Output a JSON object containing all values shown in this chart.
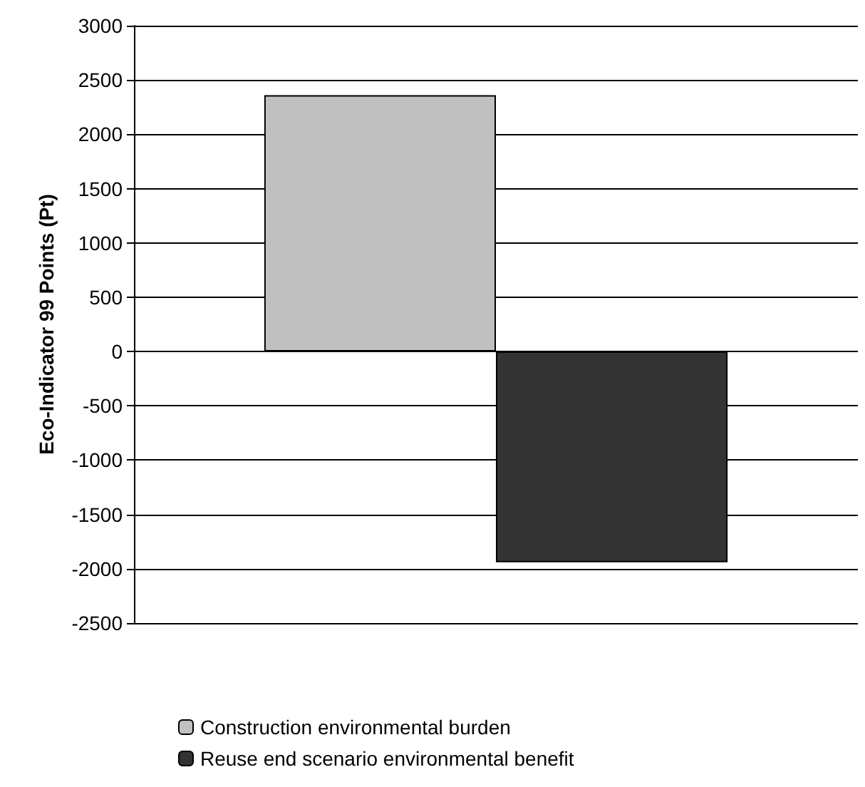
{
  "chart_data": {
    "type": "bar",
    "ylabel": "Eco-Indicator 99 Points (Pt)",
    "categories": [
      null
    ],
    "series": [
      {
        "name": "Construction environmental burden",
        "color": "#c0c0c0",
        "values": [
          2360
        ]
      },
      {
        "name": "Reuse end scenario environmental benefit",
        "color": "#333333",
        "values": [
          -1940
        ]
      }
    ],
    "ylim": [
      -2500,
      3000
    ],
    "yticks": [
      -2500,
      -2000,
      -1500,
      -1000,
      -500,
      0,
      500,
      1000,
      1500,
      2000,
      2500,
      3000
    ],
    "grid": "y",
    "legend": "bottom"
  }
}
